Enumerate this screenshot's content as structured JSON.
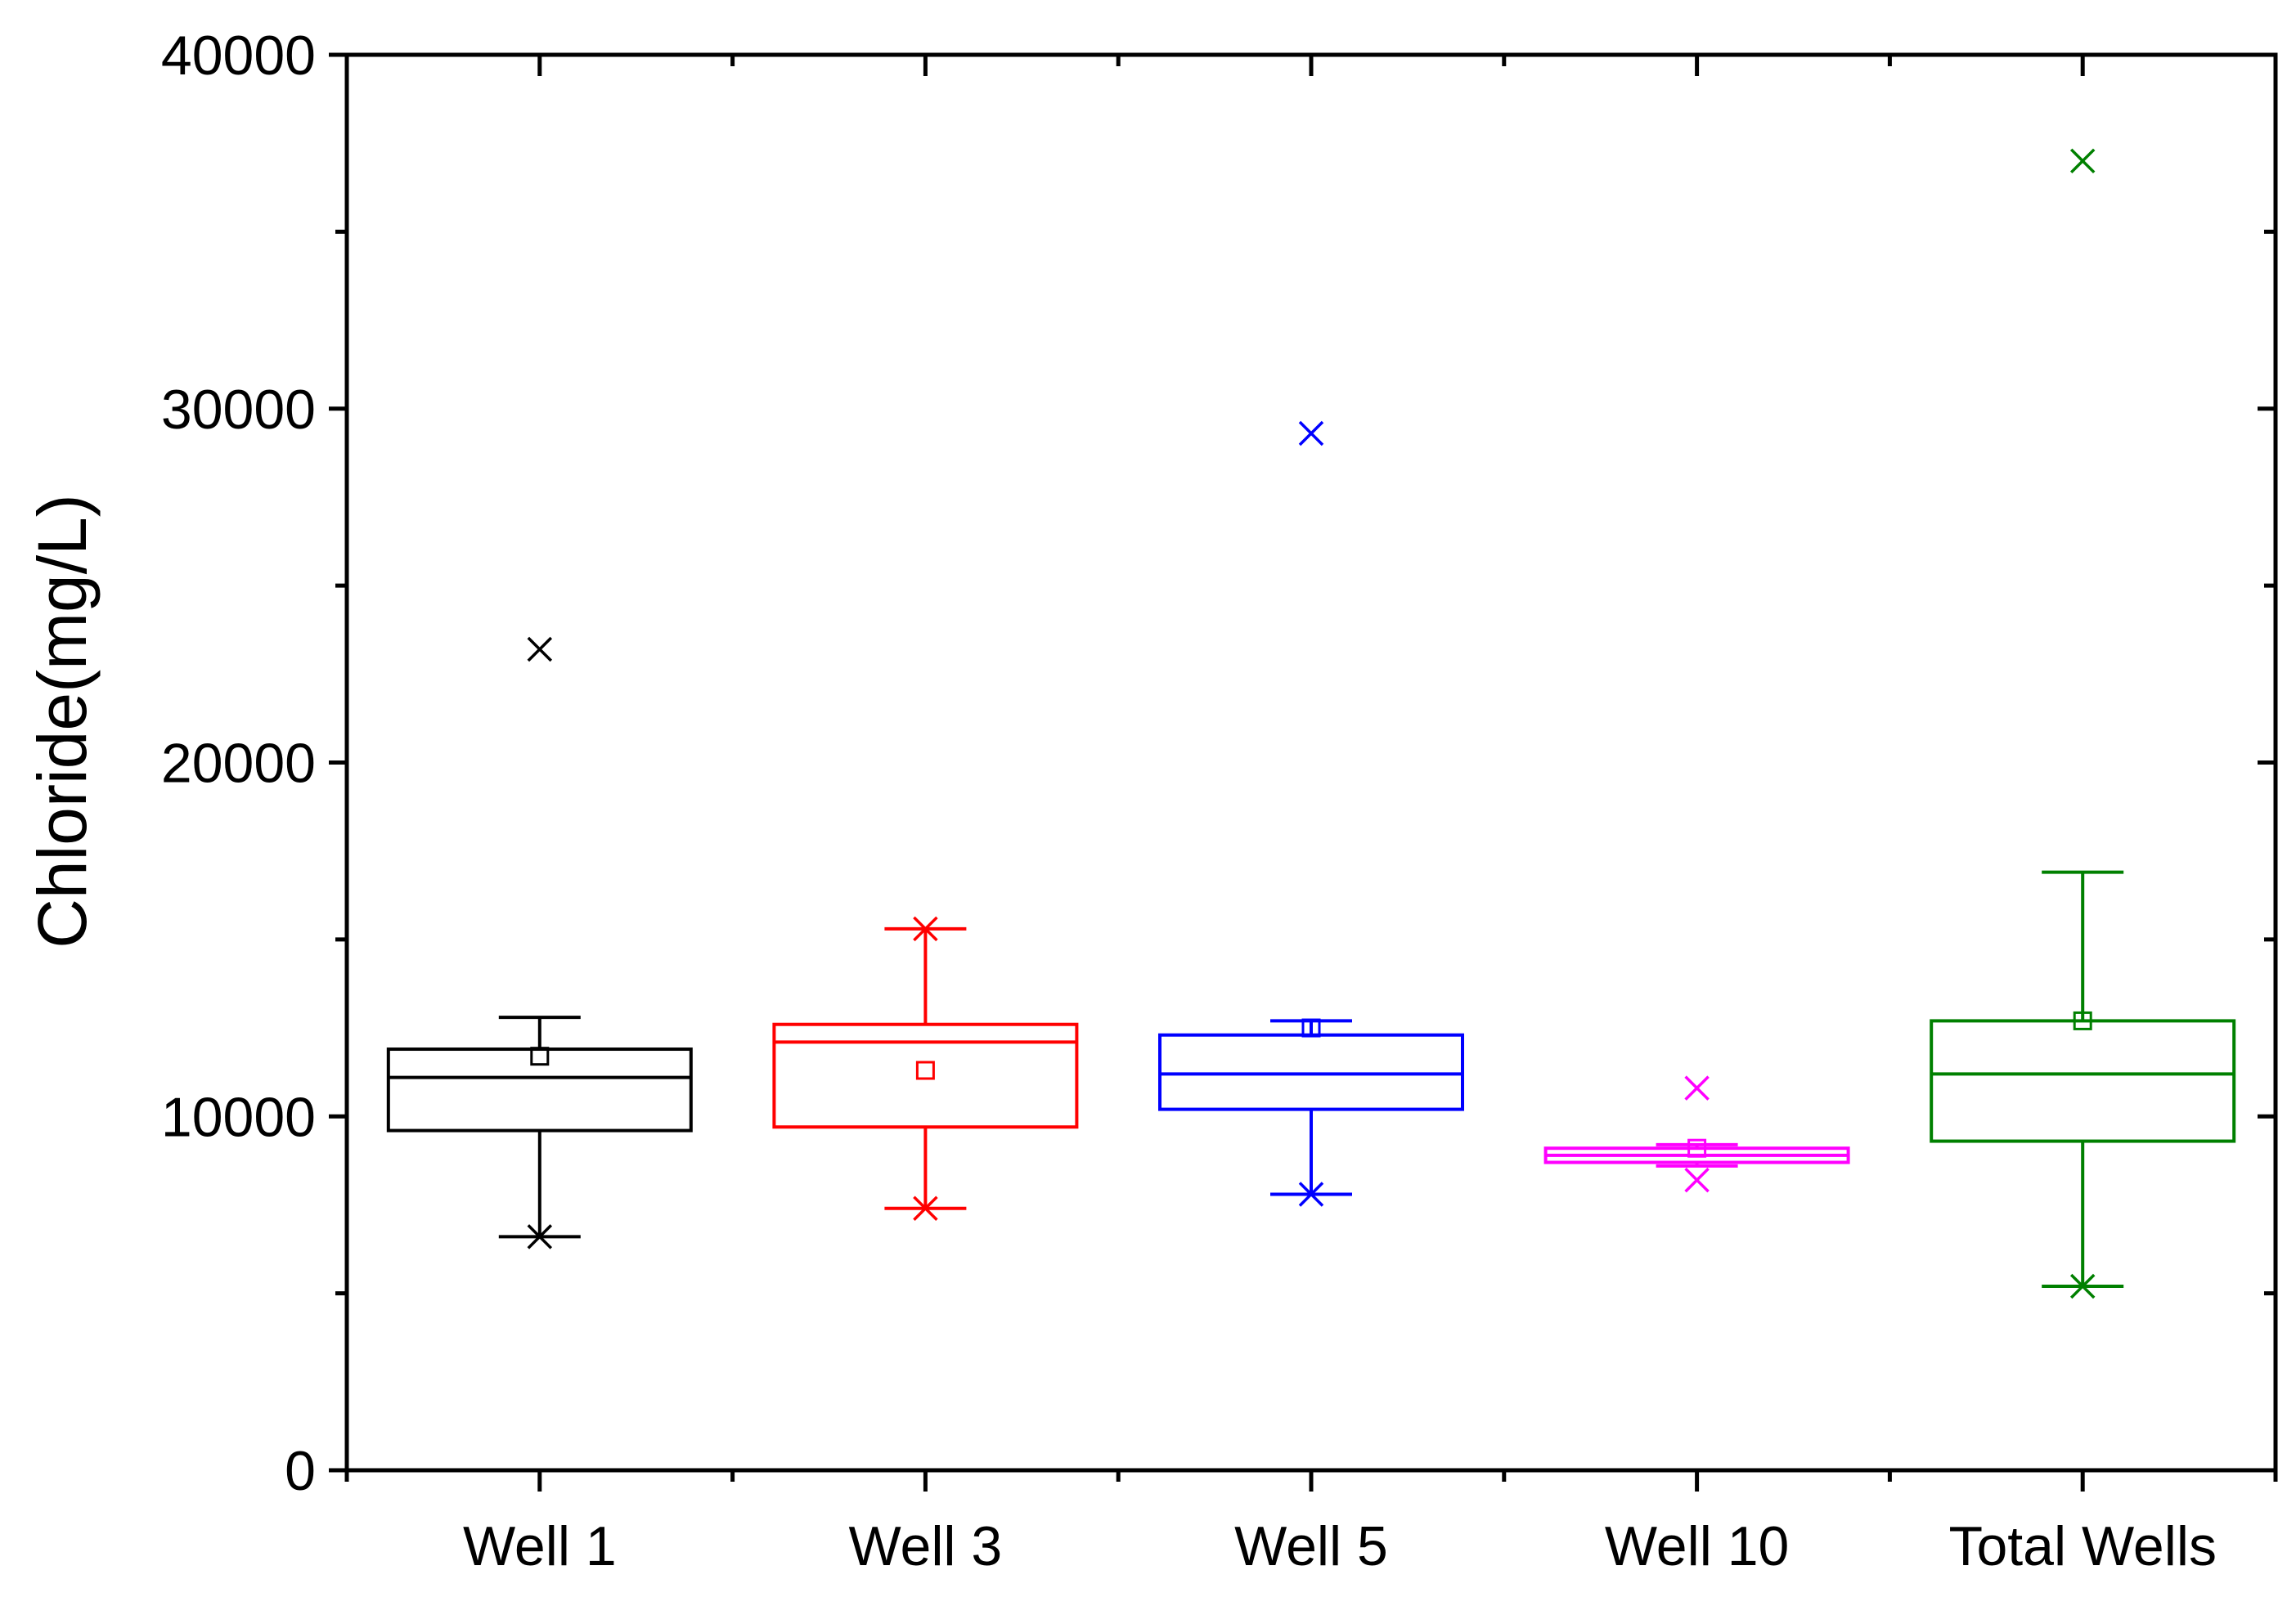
{
  "chart_data": {
    "type": "box",
    "title": "",
    "xlabel": "",
    "ylabel": "Chloride(mg/L)",
    "ylim": [
      0,
      40000
    ],
    "yticks": [
      0,
      10000,
      20000,
      30000,
      40000
    ],
    "y_tick_labels": [
      "0",
      "10000",
      "20000",
      "30000",
      "40000"
    ],
    "y_minor_step": 5000,
    "categories": [
      "Well 1",
      "Well 3",
      "Well 5",
      "Well 10",
      "Total Wells"
    ],
    "series": [
      {
        "name": "Well 1",
        "color": "#000000",
        "whisker_low": 6600,
        "q1": 9600,
        "median": 11100,
        "q3": 11900,
        "whisker_high": 12800,
        "mean": 11700,
        "min_marker": 6600,
        "max_marker": 23200
      },
      {
        "name": "Well 3",
        "color": "#ff0000",
        "whisker_low": 7400,
        "q1": 9700,
        "median": 12100,
        "q3": 12600,
        "whisker_high": 15300,
        "mean": 11300,
        "min_marker": 7400,
        "max_marker": 15300
      },
      {
        "name": "Well 5",
        "color": "#0000ff",
        "whisker_low": 7800,
        "q1": 10200,
        "median": 11200,
        "q3": 12300,
        "whisker_high": 12700,
        "mean": 12500,
        "min_marker": 7800,
        "max_marker": 29300
      },
      {
        "name": "Well 10",
        "color": "#ff00ff",
        "whisker_low": 8600,
        "q1": 8700,
        "median": 8900,
        "q3": 9100,
        "whisker_high": 9200,
        "mean": 9100,
        "min_marker": 8200,
        "max_marker": 10800
      },
      {
        "name": "Total Wells",
        "color": "#008000",
        "whisker_low": 5200,
        "q1": 9300,
        "median": 11200,
        "q3": 12700,
        "whisker_high": 16900,
        "mean": 12700,
        "min_marker": 5200,
        "max_marker": 37000
      }
    ]
  }
}
